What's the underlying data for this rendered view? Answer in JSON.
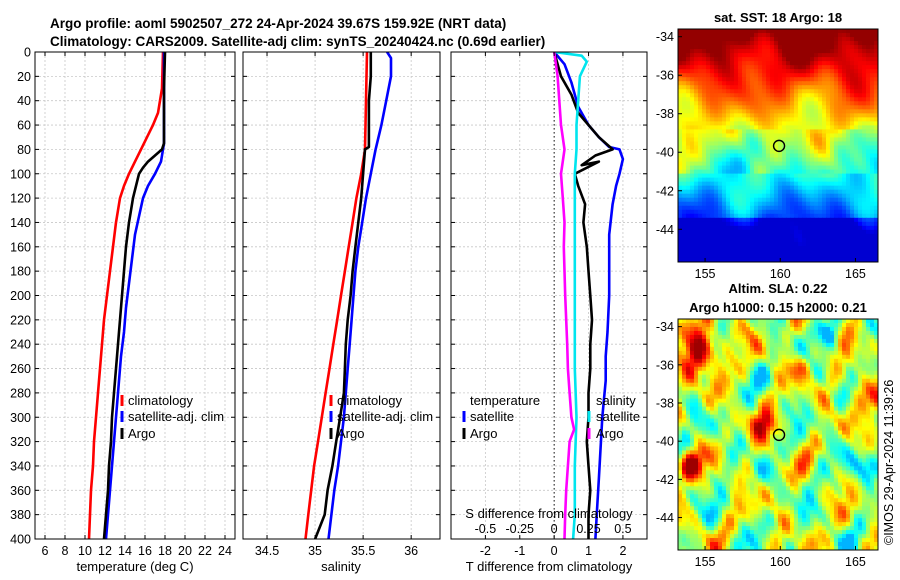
{
  "title_line1": "Argo profile: aoml 5902507_272 24-Apr-2024 39.67S 159.92E (NRT data)",
  "title_line2": "Climatology: CARS2009. Satellite-adj clim: synTS_20240424.nc (0.69d earlier)",
  "credit": "©IMOS 29-Apr-2024 11:39:26",
  "colors": {
    "climatology": "#ff0000",
    "satellite": "#0000ff",
    "argo": "#000000",
    "cyan": "#00e5ee",
    "magenta": "#ff00ff"
  },
  "legend_profiles": {
    "climatology": "climatology",
    "satellite": "satellite-adj. clim",
    "argo": "Argo"
  },
  "legend_diff": {
    "temperature": "temperature",
    "salinity": "salinity",
    "satellite_t": "satellite",
    "satellite_s": "satellite",
    "argo": "Argo"
  },
  "chart_data": [
    {
      "type": "line",
      "id": "temperature",
      "xlabel": "temperature (deg C)",
      "ylabel": "",
      "xlim": [
        5,
        25
      ],
      "ylim": [
        400,
        0
      ],
      "xticks": [
        6,
        8,
        10,
        12,
        14,
        16,
        18,
        20,
        22,
        24
      ],
      "yticks": [
        0,
        20,
        40,
        60,
        80,
        100,
        120,
        140,
        160,
        180,
        200,
        220,
        240,
        260,
        280,
        300,
        320,
        340,
        360,
        380,
        400
      ],
      "series": [
        {
          "name": "climatology",
          "points": [
            [
              17.8,
              0
            ],
            [
              17.7,
              30
            ],
            [
              17.3,
              50
            ],
            [
              16.8,
              60
            ],
            [
              16.2,
              70
            ],
            [
              15.6,
              80
            ],
            [
              15.0,
              90
            ],
            [
              14.4,
              100
            ],
            [
              13.9,
              110
            ],
            [
              13.5,
              120
            ],
            [
              13.1,
              140
            ],
            [
              12.8,
              160
            ],
            [
              12.5,
              180
            ],
            [
              12.2,
              200
            ],
            [
              11.9,
              220
            ],
            [
              11.7,
              240
            ],
            [
              11.5,
              260
            ],
            [
              11.3,
              280
            ],
            [
              11.1,
              300
            ],
            [
              10.9,
              320
            ],
            [
              10.8,
              340
            ],
            [
              10.6,
              360
            ],
            [
              10.5,
              380
            ],
            [
              10.4,
              400
            ]
          ]
        },
        {
          "name": "satellite-adj. clim",
          "points": [
            [
              17.9,
              0
            ],
            [
              17.9,
              50
            ],
            [
              17.9,
              60
            ],
            [
              17.9,
              75
            ],
            [
              17.8,
              80
            ],
            [
              17.6,
              90
            ],
            [
              17.0,
              100
            ],
            [
              16.3,
              110
            ],
            [
              15.8,
              120
            ],
            [
              15.4,
              135
            ],
            [
              15.0,
              150
            ],
            [
              14.7,
              170
            ],
            [
              14.4,
              190
            ],
            [
              14.1,
              210
            ],
            [
              13.9,
              230
            ],
            [
              13.6,
              250
            ],
            [
              13.4,
              270
            ],
            [
              13.2,
              290
            ],
            [
              13.0,
              310
            ],
            [
              12.8,
              330
            ],
            [
              12.6,
              350
            ],
            [
              12.4,
              370
            ],
            [
              12.2,
              390
            ],
            [
              12.1,
              400
            ]
          ]
        },
        {
          "name": "Argo",
          "points": [
            [
              18.0,
              0
            ],
            [
              17.9,
              30
            ],
            [
              17.9,
              60
            ],
            [
              17.9,
              75
            ],
            [
              17.7,
              80
            ],
            [
              17.0,
              85
            ],
            [
              16.3,
              90
            ],
            [
              15.8,
              95
            ],
            [
              15.4,
              100
            ],
            [
              15.1,
              110
            ],
            [
              14.8,
              120
            ],
            [
              14.6,
              130
            ],
            [
              14.4,
              140
            ],
            [
              14.1,
              160
            ],
            [
              13.9,
              180
            ],
            [
              13.7,
              200
            ],
            [
              13.5,
              220
            ],
            [
              13.3,
              240
            ],
            [
              13.1,
              260
            ],
            [
              12.9,
              280
            ],
            [
              12.7,
              300
            ],
            [
              12.6,
              320
            ],
            [
              12.4,
              340
            ],
            [
              12.3,
              360
            ],
            [
              12.1,
              380
            ],
            [
              11.9,
              400
            ]
          ]
        }
      ]
    },
    {
      "type": "line",
      "id": "salinity",
      "xlabel": "salinity",
      "ylabel": "",
      "xlim": [
        34.25,
        36.3
      ],
      "ylim": [
        400,
        0
      ],
      "xticks": [
        34.5,
        35,
        35.5,
        36
      ],
      "xtick_labels": [
        "34.5",
        "35",
        "35.5",
        "36"
      ],
      "series": [
        {
          "name": "climatology",
          "points": [
            [
              35.54,
              0
            ],
            [
              35.53,
              40
            ],
            [
              35.52,
              80
            ],
            [
              35.48,
              100
            ],
            [
              35.43,
              120
            ],
            [
              35.39,
              140
            ],
            [
              35.35,
              160
            ],
            [
              35.31,
              180
            ],
            [
              35.27,
              200
            ],
            [
              35.23,
              220
            ],
            [
              35.19,
              240
            ],
            [
              35.15,
              260
            ],
            [
              35.11,
              280
            ],
            [
              35.07,
              300
            ],
            [
              35.03,
              320
            ],
            [
              34.99,
              340
            ],
            [
              34.96,
              360
            ],
            [
              34.93,
              380
            ],
            [
              34.9,
              400
            ]
          ]
        },
        {
          "name": "satellite-adj. clim",
          "points": [
            [
              35.75,
              0
            ],
            [
              35.79,
              5
            ],
            [
              35.79,
              20
            ],
            [
              35.74,
              40
            ],
            [
              35.69,
              60
            ],
            [
              35.63,
              80
            ],
            [
              35.58,
              100
            ],
            [
              35.53,
              120
            ],
            [
              35.49,
              140
            ],
            [
              35.45,
              160
            ],
            [
              35.42,
              180
            ],
            [
              35.4,
              200
            ],
            [
              35.38,
              220
            ],
            [
              35.36,
              240
            ],
            [
              35.34,
              260
            ],
            [
              35.32,
              280
            ],
            [
              35.3,
              300
            ],
            [
              35.27,
              320
            ],
            [
              35.24,
              340
            ],
            [
              35.2,
              360
            ],
            [
              35.17,
              380
            ],
            [
              35.14,
              400
            ]
          ]
        },
        {
          "name": "Argo",
          "points": [
            [
              35.58,
              0
            ],
            [
              35.58,
              20
            ],
            [
              35.56,
              40
            ],
            [
              35.56,
              60
            ],
            [
              35.56,
              78
            ],
            [
              35.52,
              80
            ],
            [
              35.5,
              100
            ],
            [
              35.48,
              120
            ],
            [
              35.45,
              140
            ],
            [
              35.42,
              160
            ],
            [
              35.39,
              180
            ],
            [
              35.37,
              200
            ],
            [
              35.34,
              220
            ],
            [
              35.32,
              240
            ],
            [
              35.31,
              260
            ],
            [
              35.3,
              280
            ],
            [
              35.26,
              300
            ],
            [
              35.22,
              320
            ],
            [
              35.18,
              340
            ],
            [
              35.13,
              360
            ],
            [
              35.1,
              380
            ],
            [
              35.0,
              400
            ]
          ]
        }
      ]
    },
    {
      "type": "line",
      "id": "differences",
      "xlabel": "T difference from climatology",
      "xlabel_top": "S difference from climatology",
      "xlim": [
        -3,
        2.7
      ],
      "ylim": [
        400,
        0
      ],
      "xticks": [
        -2,
        -1,
        0,
        1,
        2
      ],
      "xtick_labels": [
        "-2",
        "-1",
        "0",
        "1",
        "2"
      ],
      "top_ticks": [
        -0.5,
        -0.25,
        0,
        0.25,
        0.5
      ],
      "top_tick_labels": [
        "-0.5",
        "-0.25",
        "0",
        "0.25",
        "0.5"
      ],
      "s_scale_note": "salinity difference plotted at 4x the temperature scale",
      "series": [
        {
          "name": "temperature satellite",
          "points": [
            [
              0.0,
              0
            ],
            [
              0.3,
              10
            ],
            [
              0.5,
              25
            ],
            [
              0.7,
              45
            ],
            [
              1.0,
              60
            ],
            [
              1.3,
              70
            ],
            [
              1.6,
              78
            ],
            [
              1.9,
              80
            ],
            [
              2.0,
              88
            ],
            [
              1.9,
              100
            ],
            [
              1.8,
              110
            ],
            [
              1.7,
              125
            ],
            [
              1.6,
              150
            ],
            [
              1.6,
              175
            ],
            [
              1.6,
              200
            ],
            [
              1.55,
              230
            ],
            [
              1.5,
              250
            ],
            [
              1.5,
              270
            ],
            [
              1.4,
              300
            ],
            [
              1.35,
              325
            ],
            [
              1.3,
              350
            ],
            [
              1.25,
              375
            ],
            [
              1.2,
              400
            ]
          ]
        },
        {
          "name": "temperature Argo",
          "points": [
            [
              0.0,
              0
            ],
            [
              0.2,
              20
            ],
            [
              0.5,
              35
            ],
            [
              0.7,
              50
            ],
            [
              1.0,
              60
            ],
            [
              1.3,
              70
            ],
            [
              1.7,
              80
            ],
            [
              1.2,
              85
            ],
            [
              0.8,
              93
            ],
            [
              1.3,
              90
            ],
            [
              0.6,
              100
            ],
            [
              0.7,
              110
            ],
            [
              0.9,
              125
            ],
            [
              0.85,
              140
            ],
            [
              0.95,
              160
            ],
            [
              1.0,
              180
            ],
            [
              1.05,
              200
            ],
            [
              1.1,
              220
            ],
            [
              1.05,
              240
            ],
            [
              1.05,
              260
            ],
            [
              1.0,
              280
            ],
            [
              1.0,
              300
            ],
            [
              0.95,
              320
            ],
            [
              1.0,
              340
            ],
            [
              1.05,
              360
            ],
            [
              1.0,
              380
            ],
            [
              1.0,
              400
            ]
          ]
        },
        {
          "name": "salinity satellite",
          "points": [
            [
              0.0,
              0
            ],
            [
              0.8,
              3
            ],
            [
              0.95,
              8
            ],
            [
              0.75,
              20
            ],
            [
              0.7,
              40
            ],
            [
              0.65,
              60
            ],
            [
              0.65,
              80
            ],
            [
              0.6,
              100
            ],
            [
              0.6,
              140
            ],
            [
              0.6,
              180
            ],
            [
              0.6,
              220
            ],
            [
              0.6,
              260
            ],
            [
              0.65,
              300
            ],
            [
              0.6,
              340
            ],
            [
              0.6,
              380
            ],
            [
              0.55,
              400
            ]
          ]
        },
        {
          "name": "salinity Argo",
          "points": [
            [
              0.0,
              0
            ],
            [
              0.1,
              20
            ],
            [
              0.15,
              40
            ],
            [
              0.2,
              60
            ],
            [
              0.3,
              80
            ],
            [
              0.2,
              100
            ],
            [
              0.25,
              120
            ],
            [
              0.3,
              140
            ],
            [
              0.28,
              160
            ],
            [
              0.3,
              180
            ],
            [
              0.32,
              200
            ],
            [
              0.35,
              220
            ],
            [
              0.38,
              240
            ],
            [
              0.4,
              260
            ],
            [
              0.45,
              280
            ],
            [
              0.5,
              300
            ],
            [
              0.58,
              310
            ],
            [
              0.45,
              320
            ],
            [
              0.4,
              340
            ],
            [
              0.35,
              360
            ],
            [
              0.32,
              380
            ],
            [
              0.3,
              400
            ]
          ]
        }
      ]
    },
    {
      "type": "heatmap",
      "id": "sst_map",
      "title": "sat. SST: 18 Argo: 18",
      "xlim": [
        153.2,
        166.5
      ],
      "ylim": [
        -45.7,
        -33.6
      ],
      "xticks": [
        155,
        160,
        165
      ],
      "yticks": [
        -34,
        -36,
        -38,
        -40,
        -42,
        -44
      ],
      "marker": [
        159.92,
        -39.67
      ]
    },
    {
      "type": "heatmap",
      "id": "sla_map",
      "title_line1": "Altim. SLA: 0.22",
      "title_line2": "Argo h1000: 0.15 h2000: 0.21",
      "xlim": [
        153.2,
        166.5
      ],
      "ylim": [
        -45.7,
        -33.6
      ],
      "xticks": [
        155,
        160,
        165
      ],
      "yticks": [
        -34,
        -36,
        -38,
        -40,
        -42,
        -44
      ],
      "marker": [
        159.92,
        -39.67
      ]
    }
  ]
}
